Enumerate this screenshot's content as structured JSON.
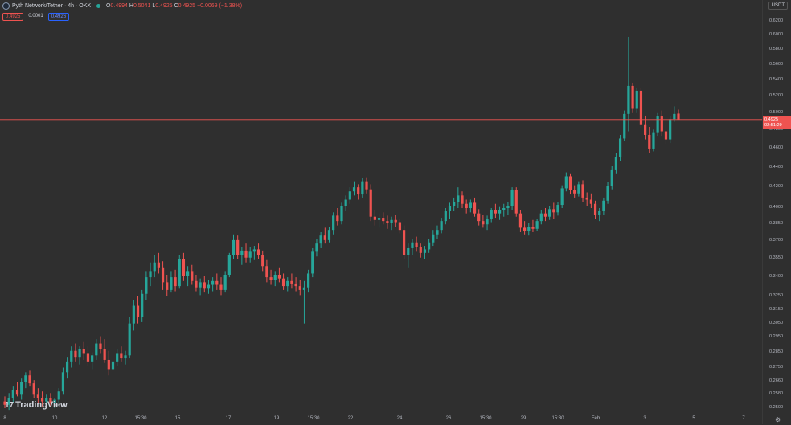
{
  "header": {
    "symbol": "Pyth Network/Tether · 4h · OKX",
    "open_label": "O",
    "open": "0.4994",
    "high_label": "H",
    "high": "0.5041",
    "low_label": "L",
    "low": "0.4925",
    "close_label": "C",
    "close": "0.4925",
    "change": "−0.0069 (−1.38%)"
  },
  "quote_boxes": {
    "bid": "0.4925",
    "spread": "0.0001",
    "ask": "0.4926"
  },
  "currency": "USDT",
  "branding": {
    "logo_text": "TradingView",
    "logo_mark": "17"
  },
  "last_price": {
    "price": "0.4925",
    "countdown": "02:51:29"
  },
  "colors": {
    "up": "#26a69a",
    "down": "#ef5350",
    "background": "#2f2f2f",
    "last_line": "#ef5350"
  },
  "chart_data": {
    "type": "candlestick",
    "scale": "log",
    "ylim": [
      0.25,
      0.64
    ],
    "price_axis_ticks": [
      "0.6400",
      "0.6200",
      "0.6000",
      "0.5800",
      "0.5600",
      "0.5400",
      "0.5200",
      "0.5000",
      "0.4800",
      "0.4600",
      "0.4400",
      "0.4200",
      "0.4000",
      "0.3850",
      "0.3700",
      "0.3550",
      "0.3400",
      "0.3250",
      "0.3150",
      "0.3050",
      "0.2950",
      "0.2850",
      "0.2750",
      "0.2660",
      "0.2580",
      "0.2500"
    ],
    "time_axis_ticks": [
      "8",
      "10",
      "12",
      "15:30",
      "15",
      "17",
      "19",
      "15:30",
      "22",
      "24",
      "26",
      "15:30",
      "29",
      "15:30",
      "Feb",
      "3",
      "5",
      "7"
    ],
    "candles": [
      {
        "o": 0.254,
        "h": 0.257,
        "l": 0.25,
        "c": 0.252
      },
      {
        "o": 0.252,
        "h": 0.259,
        "l": 0.249,
        "c": 0.256
      },
      {
        "o": 0.256,
        "h": 0.263,
        "l": 0.253,
        "c": 0.261
      },
      {
        "o": 0.261,
        "h": 0.266,
        "l": 0.257,
        "c": 0.258
      },
      {
        "o": 0.258,
        "h": 0.268,
        "l": 0.255,
        "c": 0.266
      },
      {
        "o": 0.266,
        "h": 0.272,
        "l": 0.262,
        "c": 0.27
      },
      {
        "o": 0.27,
        "h": 0.273,
        "l": 0.263,
        "c": 0.265
      },
      {
        "o": 0.265,
        "h": 0.267,
        "l": 0.256,
        "c": 0.258
      },
      {
        "o": 0.258,
        "h": 0.262,
        "l": 0.253,
        "c": 0.256
      },
      {
        "o": 0.256,
        "h": 0.26,
        "l": 0.251,
        "c": 0.254
      },
      {
        "o": 0.254,
        "h": 0.258,
        "l": 0.25,
        "c": 0.256
      },
      {
        "o": 0.256,
        "h": 0.259,
        "l": 0.251,
        "c": 0.253
      },
      {
        "o": 0.253,
        "h": 0.256,
        "l": 0.25,
        "c": 0.255
      },
      {
        "o": 0.255,
        "h": 0.262,
        "l": 0.253,
        "c": 0.26
      },
      {
        "o": 0.26,
        "h": 0.275,
        "l": 0.258,
        "c": 0.272
      },
      {
        "o": 0.272,
        "h": 0.282,
        "l": 0.268,
        "c": 0.279
      },
      {
        "o": 0.279,
        "h": 0.289,
        "l": 0.275,
        "c": 0.286
      },
      {
        "o": 0.286,
        "h": 0.291,
        "l": 0.279,
        "c": 0.282
      },
      {
        "o": 0.282,
        "h": 0.289,
        "l": 0.277,
        "c": 0.287
      },
      {
        "o": 0.287,
        "h": 0.292,
        "l": 0.28,
        "c": 0.284
      },
      {
        "o": 0.284,
        "h": 0.289,
        "l": 0.276,
        "c": 0.279
      },
      {
        "o": 0.279,
        "h": 0.285,
        "l": 0.274,
        "c": 0.283
      },
      {
        "o": 0.283,
        "h": 0.294,
        "l": 0.28,
        "c": 0.291
      },
      {
        "o": 0.291,
        "h": 0.296,
        "l": 0.284,
        "c": 0.287
      },
      {
        "o": 0.287,
        "h": 0.294,
        "l": 0.278,
        "c": 0.28
      },
      {
        "o": 0.28,
        "h": 0.286,
        "l": 0.27,
        "c": 0.274
      },
      {
        "o": 0.274,
        "h": 0.283,
        "l": 0.268,
        "c": 0.279
      },
      {
        "o": 0.279,
        "h": 0.287,
        "l": 0.276,
        "c": 0.284
      },
      {
        "o": 0.284,
        "h": 0.289,
        "l": 0.279,
        "c": 0.281
      },
      {
        "o": 0.281,
        "h": 0.286,
        "l": 0.277,
        "c": 0.283
      },
      {
        "o": 0.283,
        "h": 0.31,
        "l": 0.281,
        "c": 0.305
      },
      {
        "o": 0.305,
        "h": 0.322,
        "l": 0.3,
        "c": 0.318
      },
      {
        "o": 0.318,
        "h": 0.325,
        "l": 0.305,
        "c": 0.31
      },
      {
        "o": 0.31,
        "h": 0.33,
        "l": 0.306,
        "c": 0.327
      },
      {
        "o": 0.327,
        "h": 0.345,
        "l": 0.322,
        "c": 0.34
      },
      {
        "o": 0.34,
        "h": 0.352,
        "l": 0.333,
        "c": 0.345
      },
      {
        "o": 0.345,
        "h": 0.358,
        "l": 0.34,
        "c": 0.352
      },
      {
        "o": 0.352,
        "h": 0.36,
        "l": 0.343,
        "c": 0.348
      },
      {
        "o": 0.348,
        "h": 0.353,
        "l": 0.33,
        "c": 0.336
      },
      {
        "o": 0.336,
        "h": 0.342,
        "l": 0.325,
        "c": 0.33
      },
      {
        "o": 0.33,
        "h": 0.345,
        "l": 0.328,
        "c": 0.34
      },
      {
        "o": 0.34,
        "h": 0.346,
        "l": 0.329,
        "c": 0.333
      },
      {
        "o": 0.333,
        "h": 0.358,
        "l": 0.331,
        "c": 0.355
      },
      {
        "o": 0.355,
        "h": 0.36,
        "l": 0.337,
        "c": 0.341
      },
      {
        "o": 0.341,
        "h": 0.349,
        "l": 0.333,
        "c": 0.345
      },
      {
        "o": 0.345,
        "h": 0.35,
        "l": 0.334,
        "c": 0.337
      },
      {
        "o": 0.337,
        "h": 0.342,
        "l": 0.329,
        "c": 0.332
      },
      {
        "o": 0.332,
        "h": 0.339,
        "l": 0.326,
        "c": 0.336
      },
      {
        "o": 0.336,
        "h": 0.341,
        "l": 0.328,
        "c": 0.331
      },
      {
        "o": 0.331,
        "h": 0.338,
        "l": 0.327,
        "c": 0.334
      },
      {
        "o": 0.334,
        "h": 0.34,
        "l": 0.329,
        "c": 0.337
      },
      {
        "o": 0.337,
        "h": 0.343,
        "l": 0.33,
        "c": 0.334
      },
      {
        "o": 0.334,
        "h": 0.34,
        "l": 0.326,
        "c": 0.33
      },
      {
        "o": 0.33,
        "h": 0.345,
        "l": 0.328,
        "c": 0.342
      },
      {
        "o": 0.342,
        "h": 0.36,
        "l": 0.34,
        "c": 0.358
      },
      {
        "o": 0.358,
        "h": 0.376,
        "l": 0.355,
        "c": 0.371
      },
      {
        "o": 0.371,
        "h": 0.375,
        "l": 0.355,
        "c": 0.358
      },
      {
        "o": 0.358,
        "h": 0.365,
        "l": 0.35,
        "c": 0.362
      },
      {
        "o": 0.362,
        "h": 0.368,
        "l": 0.352,
        "c": 0.356
      },
      {
        "o": 0.356,
        "h": 0.365,
        "l": 0.352,
        "c": 0.361
      },
      {
        "o": 0.361,
        "h": 0.366,
        "l": 0.354,
        "c": 0.363
      },
      {
        "o": 0.363,
        "h": 0.368,
        "l": 0.355,
        "c": 0.358
      },
      {
        "o": 0.358,
        "h": 0.362,
        "l": 0.345,
        "c": 0.349
      },
      {
        "o": 0.349,
        "h": 0.354,
        "l": 0.336,
        "c": 0.34
      },
      {
        "o": 0.34,
        "h": 0.346,
        "l": 0.334,
        "c": 0.338
      },
      {
        "o": 0.338,
        "h": 0.345,
        "l": 0.333,
        "c": 0.342
      },
      {
        "o": 0.342,
        "h": 0.348,
        "l": 0.336,
        "c": 0.339
      },
      {
        "o": 0.339,
        "h": 0.343,
        "l": 0.33,
        "c": 0.333
      },
      {
        "o": 0.333,
        "h": 0.34,
        "l": 0.329,
        "c": 0.337
      },
      {
        "o": 0.337,
        "h": 0.343,
        "l": 0.331,
        "c": 0.335
      },
      {
        "o": 0.335,
        "h": 0.34,
        "l": 0.329,
        "c": 0.333
      },
      {
        "o": 0.333,
        "h": 0.338,
        "l": 0.326,
        "c": 0.33
      },
      {
        "o": 0.33,
        "h": 0.337,
        "l": 0.305,
        "c": 0.332
      },
      {
        "o": 0.332,
        "h": 0.346,
        "l": 0.328,
        "c": 0.343
      },
      {
        "o": 0.343,
        "h": 0.364,
        "l": 0.34,
        "c": 0.361
      },
      {
        "o": 0.361,
        "h": 0.372,
        "l": 0.357,
        "c": 0.368
      },
      {
        "o": 0.368,
        "h": 0.378,
        "l": 0.364,
        "c": 0.375
      },
      {
        "o": 0.375,
        "h": 0.382,
        "l": 0.368,
        "c": 0.371
      },
      {
        "o": 0.371,
        "h": 0.383,
        "l": 0.369,
        "c": 0.38
      },
      {
        "o": 0.38,
        "h": 0.396,
        "l": 0.376,
        "c": 0.393
      },
      {
        "o": 0.393,
        "h": 0.4,
        "l": 0.384,
        "c": 0.388
      },
      {
        "o": 0.388,
        "h": 0.405,
        "l": 0.385,
        "c": 0.402
      },
      {
        "o": 0.402,
        "h": 0.412,
        "l": 0.397,
        "c": 0.408
      },
      {
        "o": 0.408,
        "h": 0.42,
        "l": 0.404,
        "c": 0.416
      },
      {
        "o": 0.416,
        "h": 0.426,
        "l": 0.412,
        "c": 0.42
      },
      {
        "o": 0.42,
        "h": 0.423,
        "l": 0.408,
        "c": 0.413
      },
      {
        "o": 0.413,
        "h": 0.429,
        "l": 0.41,
        "c": 0.426
      },
      {
        "o": 0.426,
        "h": 0.43,
        "l": 0.414,
        "c": 0.418
      },
      {
        "o": 0.418,
        "h": 0.423,
        "l": 0.388,
        "c": 0.392
      },
      {
        "o": 0.392,
        "h": 0.398,
        "l": 0.384,
        "c": 0.389
      },
      {
        "o": 0.389,
        "h": 0.395,
        "l": 0.382,
        "c": 0.391
      },
      {
        "o": 0.391,
        "h": 0.396,
        "l": 0.385,
        "c": 0.388
      },
      {
        "o": 0.388,
        "h": 0.393,
        "l": 0.381,
        "c": 0.386
      },
      {
        "o": 0.386,
        "h": 0.392,
        "l": 0.38,
        "c": 0.389
      },
      {
        "o": 0.389,
        "h": 0.394,
        "l": 0.383,
        "c": 0.387
      },
      {
        "o": 0.387,
        "h": 0.39,
        "l": 0.377,
        "c": 0.38
      },
      {
        "o": 0.38,
        "h": 0.384,
        "l": 0.355,
        "c": 0.358
      },
      {
        "o": 0.358,
        "h": 0.368,
        "l": 0.348,
        "c": 0.364
      },
      {
        "o": 0.364,
        "h": 0.372,
        "l": 0.358,
        "c": 0.369
      },
      {
        "o": 0.369,
        "h": 0.374,
        "l": 0.361,
        "c": 0.365
      },
      {
        "o": 0.365,
        "h": 0.368,
        "l": 0.356,
        "c": 0.36
      },
      {
        "o": 0.36,
        "h": 0.366,
        "l": 0.355,
        "c": 0.363
      },
      {
        "o": 0.363,
        "h": 0.372,
        "l": 0.36,
        "c": 0.369
      },
      {
        "o": 0.369,
        "h": 0.38,
        "l": 0.366,
        "c": 0.376
      },
      {
        "o": 0.376,
        "h": 0.384,
        "l": 0.372,
        "c": 0.38
      },
      {
        "o": 0.38,
        "h": 0.391,
        "l": 0.377,
        "c": 0.388
      },
      {
        "o": 0.388,
        "h": 0.4,
        "l": 0.385,
        "c": 0.397
      },
      {
        "o": 0.397,
        "h": 0.405,
        "l": 0.39,
        "c": 0.402
      },
      {
        "o": 0.402,
        "h": 0.41,
        "l": 0.397,
        "c": 0.406
      },
      {
        "o": 0.406,
        "h": 0.42,
        "l": 0.4,
        "c": 0.412
      },
      {
        "o": 0.412,
        "h": 0.416,
        "l": 0.4,
        "c": 0.404
      },
      {
        "o": 0.404,
        "h": 0.408,
        "l": 0.395,
        "c": 0.4
      },
      {
        "o": 0.4,
        "h": 0.408,
        "l": 0.396,
        "c": 0.405
      },
      {
        "o": 0.405,
        "h": 0.41,
        "l": 0.392,
        "c": 0.395
      },
      {
        "o": 0.395,
        "h": 0.399,
        "l": 0.384,
        "c": 0.388
      },
      {
        "o": 0.388,
        "h": 0.394,
        "l": 0.382,
        "c": 0.385
      },
      {
        "o": 0.385,
        "h": 0.393,
        "l": 0.38,
        "c": 0.39
      },
      {
        "o": 0.39,
        "h": 0.4,
        "l": 0.387,
        "c": 0.398
      },
      {
        "o": 0.398,
        "h": 0.404,
        "l": 0.391,
        "c": 0.395
      },
      {
        "o": 0.395,
        "h": 0.401,
        "l": 0.389,
        "c": 0.398
      },
      {
        "o": 0.398,
        "h": 0.404,
        "l": 0.392,
        "c": 0.4
      },
      {
        "o": 0.4,
        "h": 0.406,
        "l": 0.394,
        "c": 0.402
      },
      {
        "o": 0.402,
        "h": 0.42,
        "l": 0.398,
        "c": 0.417
      },
      {
        "o": 0.417,
        "h": 0.42,
        "l": 0.392,
        "c": 0.395
      },
      {
        "o": 0.395,
        "h": 0.398,
        "l": 0.378,
        "c": 0.382
      },
      {
        "o": 0.382,
        "h": 0.388,
        "l": 0.376,
        "c": 0.379
      },
      {
        "o": 0.379,
        "h": 0.386,
        "l": 0.375,
        "c": 0.383
      },
      {
        "o": 0.383,
        "h": 0.389,
        "l": 0.378,
        "c": 0.381
      },
      {
        "o": 0.381,
        "h": 0.39,
        "l": 0.379,
        "c": 0.388
      },
      {
        "o": 0.388,
        "h": 0.398,
        "l": 0.385,
        "c": 0.395
      },
      {
        "o": 0.395,
        "h": 0.4,
        "l": 0.388,
        "c": 0.392
      },
      {
        "o": 0.392,
        "h": 0.402,
        "l": 0.389,
        "c": 0.399
      },
      {
        "o": 0.399,
        "h": 0.405,
        "l": 0.39,
        "c": 0.396
      },
      {
        "o": 0.396,
        "h": 0.406,
        "l": 0.393,
        "c": 0.403
      },
      {
        "o": 0.403,
        "h": 0.422,
        "l": 0.4,
        "c": 0.419
      },
      {
        "o": 0.419,
        "h": 0.435,
        "l": 0.416,
        "c": 0.431
      },
      {
        "o": 0.431,
        "h": 0.434,
        "l": 0.413,
        "c": 0.417
      },
      {
        "o": 0.417,
        "h": 0.422,
        "l": 0.41,
        "c": 0.414
      },
      {
        "o": 0.414,
        "h": 0.426,
        "l": 0.411,
        "c": 0.423
      },
      {
        "o": 0.423,
        "h": 0.427,
        "l": 0.406,
        "c": 0.41
      },
      {
        "o": 0.41,
        "h": 0.415,
        "l": 0.402,
        "c": 0.408
      },
      {
        "o": 0.408,
        "h": 0.414,
        "l": 0.4,
        "c": 0.404
      },
      {
        "o": 0.404,
        "h": 0.407,
        "l": 0.39,
        "c": 0.394
      },
      {
        "o": 0.394,
        "h": 0.4,
        "l": 0.388,
        "c": 0.397
      },
      {
        "o": 0.397,
        "h": 0.41,
        "l": 0.394,
        "c": 0.407
      },
      {
        "o": 0.407,
        "h": 0.425,
        "l": 0.404,
        "c": 0.421
      },
      {
        "o": 0.421,
        "h": 0.442,
        "l": 0.418,
        "c": 0.438
      },
      {
        "o": 0.438,
        "h": 0.455,
        "l": 0.434,
        "c": 0.451
      },
      {
        "o": 0.451,
        "h": 0.475,
        "l": 0.447,
        "c": 0.471
      },
      {
        "o": 0.471,
        "h": 0.503,
        "l": 0.468,
        "c": 0.499
      },
      {
        "o": 0.499,
        "h": 0.598,
        "l": 0.479,
        "c": 0.533
      },
      {
        "o": 0.533,
        "h": 0.537,
        "l": 0.5,
        "c": 0.505
      },
      {
        "o": 0.505,
        "h": 0.531,
        "l": 0.5,
        "c": 0.527
      },
      {
        "o": 0.527,
        "h": 0.53,
        "l": 0.483,
        "c": 0.487
      },
      {
        "o": 0.487,
        "h": 0.497,
        "l": 0.47,
        "c": 0.475
      },
      {
        "o": 0.475,
        "h": 0.484,
        "l": 0.455,
        "c": 0.46
      },
      {
        "o": 0.46,
        "h": 0.481,
        "l": 0.457,
        "c": 0.478
      },
      {
        "o": 0.478,
        "h": 0.5,
        "l": 0.474,
        "c": 0.496
      },
      {
        "o": 0.496,
        "h": 0.503,
        "l": 0.474,
        "c": 0.479
      },
      {
        "o": 0.479,
        "h": 0.486,
        "l": 0.465,
        "c": 0.47
      },
      {
        "o": 0.47,
        "h": 0.496,
        "l": 0.466,
        "c": 0.493
      },
      {
        "o": 0.493,
        "h": 0.508,
        "l": 0.49,
        "c": 0.499
      },
      {
        "o": 0.4994,
        "h": 0.5041,
        "l": 0.4925,
        "c": 0.4925
      }
    ]
  }
}
